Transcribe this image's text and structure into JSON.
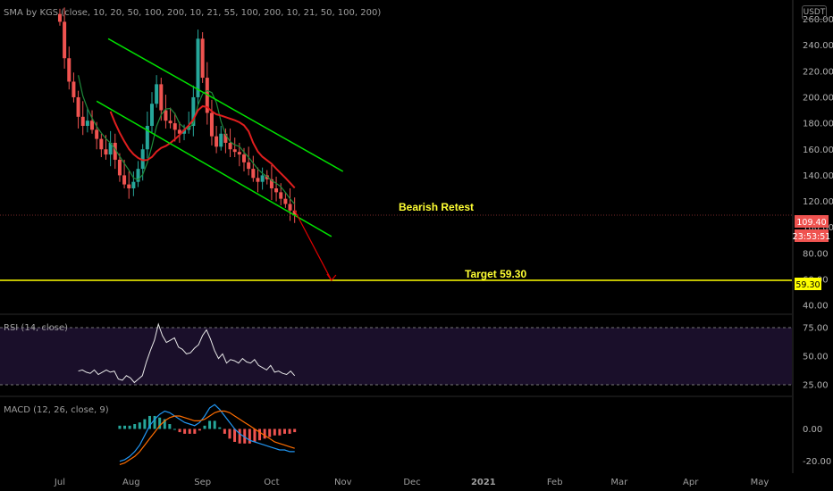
{
  "currency": "USDT",
  "colors": {
    "background": "#000000",
    "bull": "#26a69a",
    "bear": "#ef5350",
    "channel": "#00e000",
    "sma_slow": "#e01e1e",
    "target_line": "#ffff00",
    "rsi_band": "#1a0f2a"
  },
  "chart_data": {
    "type": "candlestick",
    "title": "SMA by KGS (close, 10, 20, 50, 100, 200, 10, 21, 55, 100, 200, 10, 21, 50, 100, 200)",
    "x_ticks": [
      "Jul",
      "Aug",
      "Sep",
      "Oct",
      "Nov",
      "Dec",
      "2021",
      "Feb",
      "Mar",
      "Apr",
      "May"
    ],
    "x_range": [
      "2020-06-05",
      "2021-05-15"
    ],
    "price_axis": {
      "ticks": [
        "260.00",
        "240.00",
        "220.00",
        "200.00",
        "180.00",
        "160.00",
        "140.00",
        "120.00",
        "100.00",
        "80.00",
        "60.00",
        "40.00"
      ],
      "ylim": [
        36,
        272
      ]
    },
    "last_price": "109.40",
    "countdown": "23:53:51",
    "target_price": "59.30",
    "annotations": [
      "Bearish Retest",
      "Target 59.30"
    ],
    "close": [
      [
        "2020-07-01",
        258
      ],
      [
        "2020-07-03",
        230
      ],
      [
        "2020-07-05",
        212
      ],
      [
        "2020-07-07",
        200
      ],
      [
        "2020-07-09",
        185
      ],
      [
        "2020-07-11",
        178
      ],
      [
        "2020-07-13",
        182
      ],
      [
        "2020-07-15",
        175
      ],
      [
        "2020-07-17",
        168
      ],
      [
        "2020-07-19",
        160
      ],
      [
        "2020-07-21",
        156
      ],
      [
        "2020-07-23",
        165
      ],
      [
        "2020-07-25",
        152
      ],
      [
        "2020-07-27",
        140
      ],
      [
        "2020-07-29",
        133
      ],
      [
        "2020-07-31",
        130
      ],
      [
        "2020-08-02",
        135
      ],
      [
        "2020-08-04",
        145
      ],
      [
        "2020-08-06",
        160
      ],
      [
        "2020-08-08",
        178
      ],
      [
        "2020-08-10",
        195
      ],
      [
        "2020-08-12",
        210
      ],
      [
        "2020-08-14",
        190
      ],
      [
        "2020-08-16",
        182
      ],
      [
        "2020-08-18",
        180
      ],
      [
        "2020-08-20",
        175
      ],
      [
        "2020-08-22",
        172
      ],
      [
        "2020-08-24",
        175
      ],
      [
        "2020-08-26",
        178
      ],
      [
        "2020-08-28",
        200
      ],
      [
        "2020-08-30",
        245
      ],
      [
        "2020-09-01",
        215
      ],
      [
        "2020-09-03",
        188
      ],
      [
        "2020-09-05",
        170
      ],
      [
        "2020-09-07",
        162
      ],
      [
        "2020-09-09",
        172
      ],
      [
        "2020-09-11",
        165
      ],
      [
        "2020-09-13",
        160
      ],
      [
        "2020-09-15",
        158
      ],
      [
        "2020-09-17",
        156
      ],
      [
        "2020-09-19",
        150
      ],
      [
        "2020-09-21",
        145
      ],
      [
        "2020-09-23",
        138
      ],
      [
        "2020-09-25",
        135
      ],
      [
        "2020-09-27",
        140
      ],
      [
        "2020-09-29",
        137
      ],
      [
        "2020-10-01",
        130
      ],
      [
        "2020-10-03",
        127
      ],
      [
        "2020-10-05",
        122
      ],
      [
        "2020-10-07",
        118
      ],
      [
        "2020-10-09",
        113
      ],
      [
        "2020-10-11",
        109.4
      ]
    ],
    "channel_upper": [
      [
        "2020-07-22",
        245
      ],
      [
        "2020-11-01",
        143
      ]
    ],
    "channel_lower": [
      [
        "2020-07-17",
        197
      ],
      [
        "2020-10-27",
        93
      ]
    ],
    "retest_arrow": [
      [
        "2020-10-11",
        113
      ],
      [
        "2020-10-27",
        59.3
      ]
    ],
    "rsi": {
      "label": "RSI (14, close)",
      "ticks": [
        "75.00",
        "50.00",
        "25.00"
      ],
      "ylim": [
        18,
        82
      ],
      "values": [
        37,
        38,
        36,
        35,
        38,
        34,
        36,
        38,
        36,
        37,
        30,
        29,
        33,
        31,
        27,
        30,
        33,
        45,
        55,
        64,
        78,
        68,
        62,
        64,
        66,
        58,
        56,
        52,
        53,
        57,
        60,
        68,
        73,
        65,
        55,
        48,
        52,
        44,
        47,
        46,
        44,
        48,
        45,
        44,
        47,
        42,
        40,
        38,
        42,
        36,
        37,
        35,
        34,
        37,
        33
      ],
      "start": "2020-07-09",
      "end": "2020-10-11"
    },
    "macd": {
      "label": "MACD (12, 26, close, 9)",
      "ticks": [
        "0.00",
        "-20.00"
      ],
      "ylim": [
        -24,
        19
      ],
      "macd_line": [
        -20,
        -19,
        -17,
        -14,
        -10,
        -4,
        2,
        6,
        9,
        11,
        10,
        8,
        6,
        4,
        3,
        2,
        4,
        8,
        13,
        15,
        12,
        8,
        4,
        0,
        -3,
        -5,
        -7,
        -8,
        -9,
        -10,
        -11,
        -12,
        -13,
        -13,
        -14,
        -14
      ],
      "signal_line": [
        -22,
        -21,
        -19,
        -17,
        -14,
        -10,
        -6,
        -2,
        2,
        5,
        7,
        8,
        8,
        7,
        6,
        5,
        5,
        6,
        8,
        10,
        11,
        11,
        10,
        8,
        6,
        4,
        2,
        0,
        -2,
        -4,
        -6,
        -8,
        -9,
        -10,
        -11,
        -12
      ],
      "start": "2020-07-27",
      "end": "2020-10-11"
    }
  }
}
